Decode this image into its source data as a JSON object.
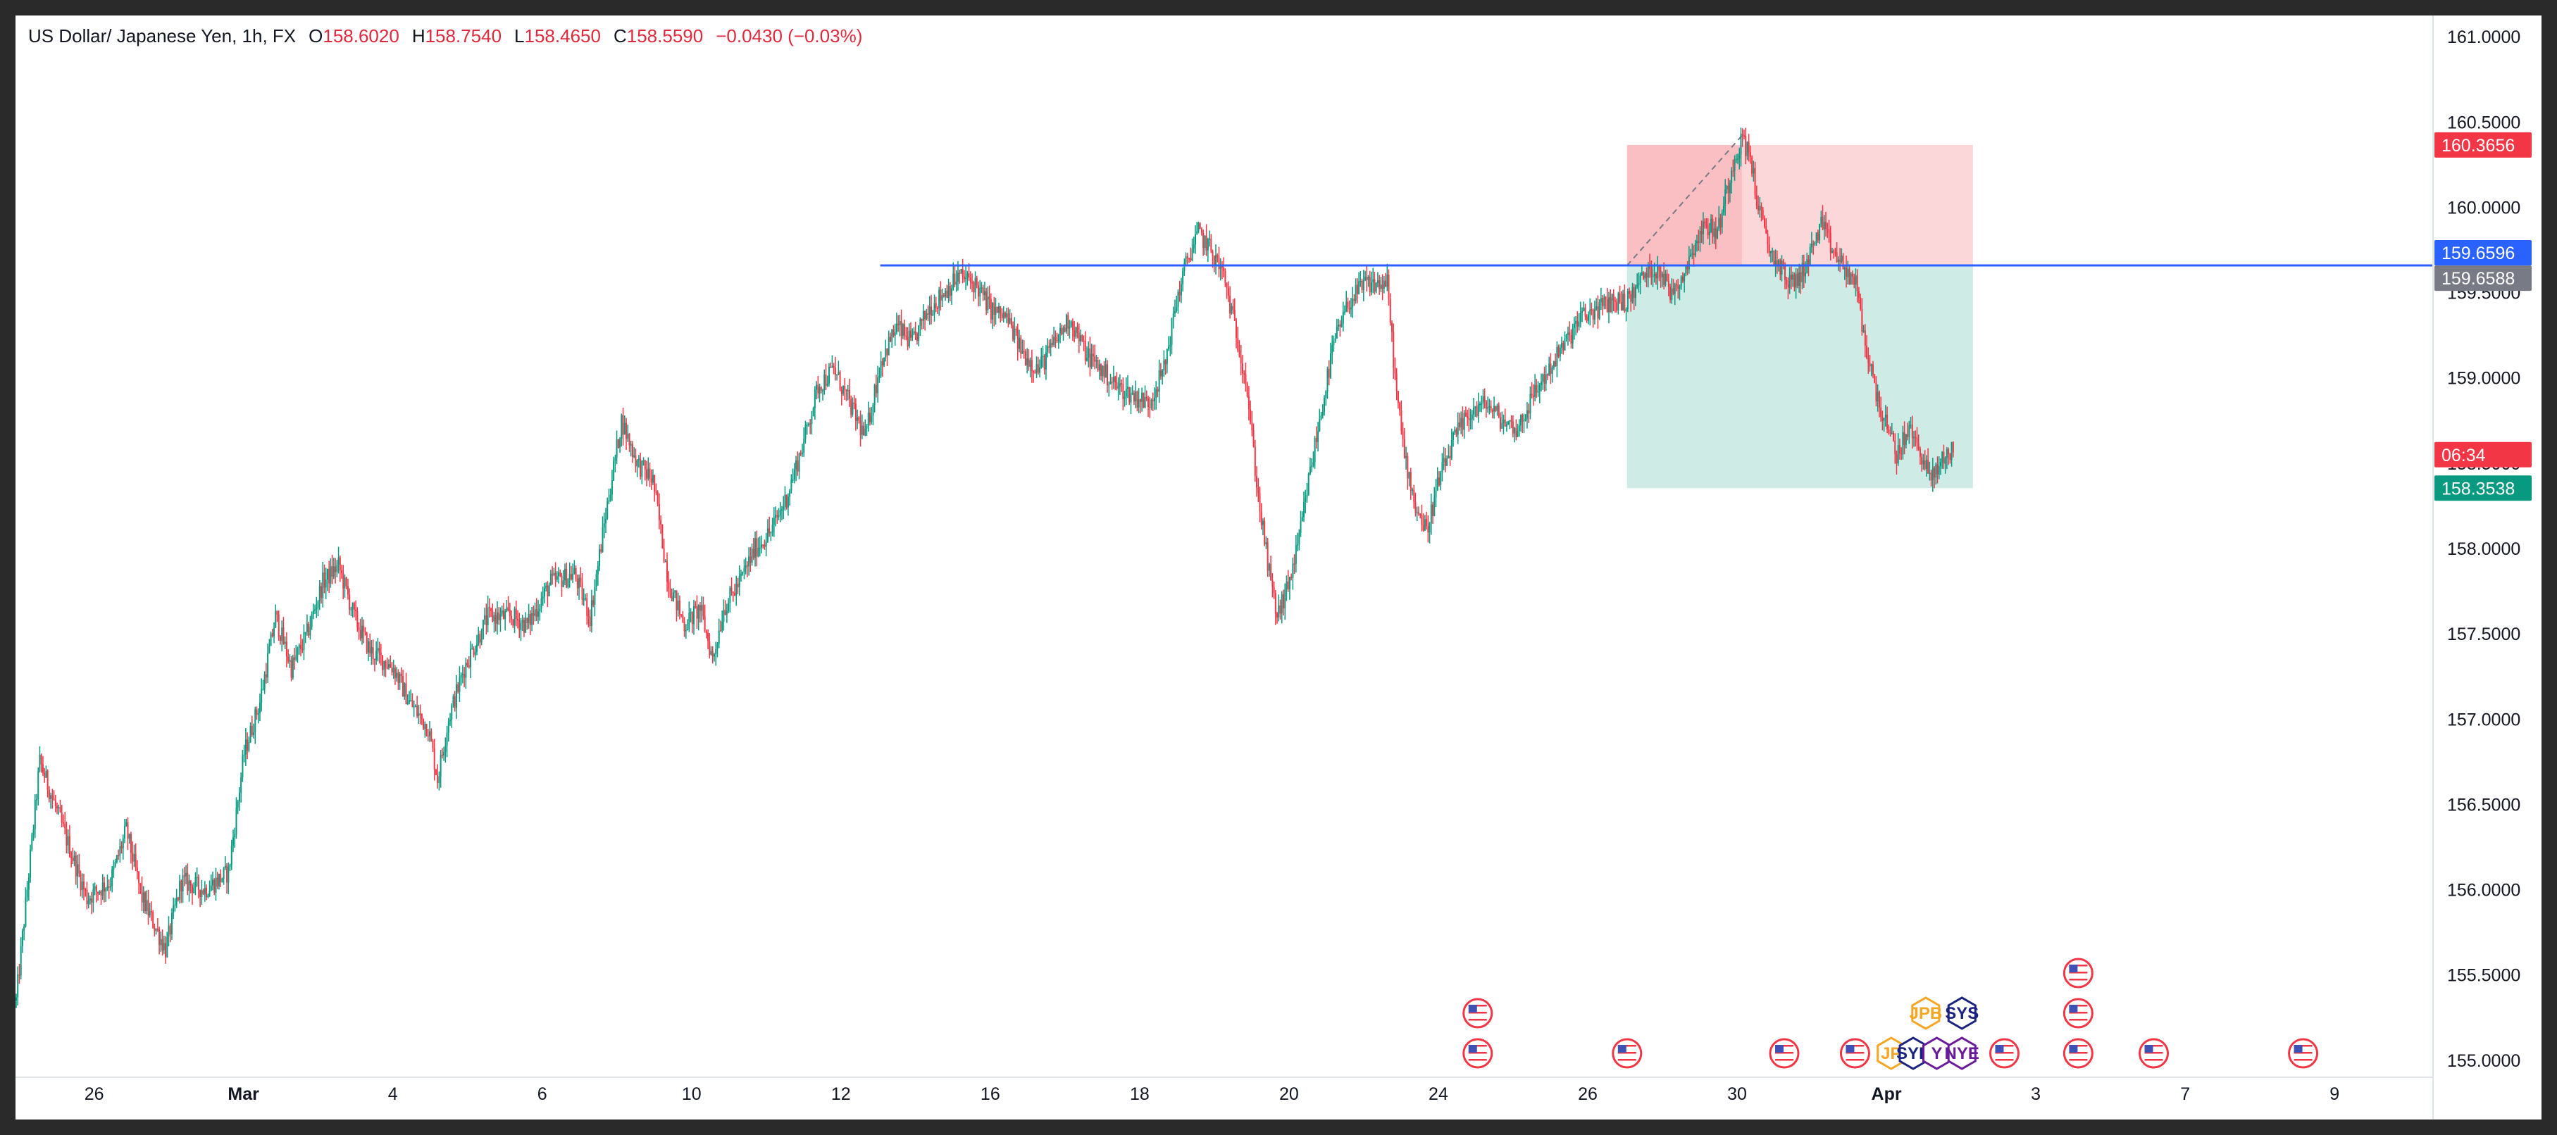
{
  "header": {
    "symbol": "US Dollar/ Japanese Yen, 1h, FX",
    "open_label": "O",
    "open": "158.6020",
    "high_label": "H",
    "high": "158.7540",
    "low_label": "L",
    "low": "158.4650",
    "close_label": "C",
    "close": "158.5590",
    "change": "−0.0430 (−0.03%)"
  },
  "chart_data": {
    "type": "candlestick",
    "ylim": [
      154.9,
      161.1
    ],
    "y_ticks": [
      "161.0000",
      "160.5000",
      "160.0000",
      "159.5000",
      "159.0000",
      "158.5000",
      "158.0000",
      "157.5000",
      "157.0000",
      "156.5000",
      "156.0000",
      "155.5000",
      "155.0000"
    ],
    "x_ticks": [
      {
        "label": "26",
        "bold": false,
        "idx": 50
      },
      {
        "label": "Mar",
        "bold": true,
        "idx": 145
      },
      {
        "label": "4",
        "bold": false,
        "idx": 240
      },
      {
        "label": "6",
        "bold": false,
        "idx": 335
      },
      {
        "label": "10",
        "bold": false,
        "idx": 430
      },
      {
        "label": "12",
        "bold": false,
        "idx": 525
      },
      {
        "label": "16",
        "bold": false,
        "idx": 620
      },
      {
        "label": "18",
        "bold": false,
        "idx": 715
      },
      {
        "label": "20",
        "bold": false,
        "idx": 810
      },
      {
        "label": "24",
        "bold": false,
        "idx": 905
      },
      {
        "label": "26",
        "bold": false,
        "idx": 1000
      },
      {
        "label": "30",
        "bold": false,
        "idx": 1095
      },
      {
        "label": "Apr",
        "bold": true,
        "idx": 1190
      },
      {
        "label": "3",
        "bold": false,
        "idx": 1285
      },
      {
        "label": "7",
        "bold": false,
        "idx": 1380
      },
      {
        "label": "9",
        "bold": false,
        "idx": 1475
      }
    ],
    "anchors": [
      [
        0,
        155.35
      ],
      [
        15,
        156.75
      ],
      [
        30,
        156.35
      ],
      [
        45,
        155.95
      ],
      [
        60,
        156.05
      ],
      [
        70,
        156.35
      ],
      [
        80,
        155.95
      ],
      [
        95,
        155.65
      ],
      [
        105,
        156.05
      ],
      [
        120,
        156.0
      ],
      [
        135,
        156.1
      ],
      [
        145,
        156.8
      ],
      [
        155,
        157.1
      ],
      [
        165,
        157.6
      ],
      [
        175,
        157.3
      ],
      [
        185,
        157.5
      ],
      [
        195,
        157.8
      ],
      [
        205,
        157.9
      ],
      [
        215,
        157.6
      ],
      [
        225,
        157.4
      ],
      [
        240,
        157.3
      ],
      [
        250,
        157.1
      ],
      [
        262,
        156.95
      ],
      [
        268,
        156.65
      ],
      [
        275,
        157.0
      ],
      [
        285,
        157.3
      ],
      [
        300,
        157.6
      ],
      [
        315,
        157.6
      ],
      [
        325,
        157.55
      ],
      [
        340,
        157.8
      ],
      [
        355,
        157.85
      ],
      [
        365,
        157.6
      ],
      [
        375,
        158.2
      ],
      [
        385,
        158.75
      ],
      [
        395,
        158.5
      ],
      [
        405,
        158.4
      ],
      [
        415,
        157.8
      ],
      [
        425,
        157.55
      ],
      [
        435,
        157.65
      ],
      [
        443,
        157.35
      ],
      [
        450,
        157.65
      ],
      [
        460,
        157.8
      ],
      [
        470,
        158.0
      ],
      [
        480,
        158.1
      ],
      [
        490,
        158.3
      ],
      [
        500,
        158.6
      ],
      [
        510,
        158.95
      ],
      [
        520,
        159.05
      ],
      [
        530,
        158.85
      ],
      [
        540,
        158.65
      ],
      [
        550,
        159.1
      ],
      [
        560,
        159.3
      ],
      [
        570,
        159.2
      ],
      [
        580,
        159.4
      ],
      [
        590,
        159.5
      ],
      [
        600,
        159.6
      ],
      [
        610,
        159.55
      ],
      [
        620,
        159.4
      ],
      [
        630,
        159.35
      ],
      [
        640,
        159.15
      ],
      [
        650,
        159.05
      ],
      [
        660,
        159.2
      ],
      [
        670,
        159.35
      ],
      [
        680,
        159.15
      ],
      [
        690,
        159.05
      ],
      [
        700,
        158.95
      ],
      [
        710,
        158.9
      ],
      [
        720,
        158.85
      ],
      [
        730,
        159.05
      ],
      [
        738,
        159.45
      ],
      [
        745,
        159.7
      ],
      [
        752,
        159.85
      ],
      [
        760,
        159.75
      ],
      [
        768,
        159.6
      ],
      [
        775,
        159.3
      ],
      [
        782,
        159.0
      ],
      [
        790,
        158.3
      ],
      [
        797,
        157.85
      ],
      [
        802,
        157.6
      ],
      [
        808,
        157.75
      ],
      [
        815,
        158.0
      ],
      [
        822,
        158.4
      ],
      [
        830,
        158.8
      ],
      [
        838,
        159.2
      ],
      [
        848,
        159.45
      ],
      [
        858,
        159.55
      ],
      [
        866,
        159.55
      ],
      [
        872,
        159.55
      ],
      [
        878,
        158.9
      ],
      [
        883,
        158.55
      ],
      [
        890,
        158.25
      ],
      [
        897,
        158.1
      ],
      [
        905,
        158.4
      ],
      [
        915,
        158.65
      ],
      [
        925,
        158.8
      ],
      [
        935,
        158.85
      ],
      [
        945,
        158.75
      ],
      [
        955,
        158.7
      ],
      [
        965,
        158.9
      ],
      [
        975,
        159.05
      ],
      [
        985,
        159.2
      ],
      [
        995,
        159.35
      ],
      [
        1005,
        159.4
      ],
      [
        1015,
        159.45
      ],
      [
        1025,
        159.45
      ],
      [
        1035,
        159.6
      ],
      [
        1045,
        159.65
      ],
      [
        1052,
        159.5
      ],
      [
        1060,
        159.6
      ],
      [
        1068,
        159.8
      ],
      [
        1075,
        159.9
      ],
      [
        1082,
        159.85
      ],
      [
        1088,
        160.1
      ],
      [
        1093,
        160.3
      ],
      [
        1098,
        160.4
      ],
      [
        1103,
        160.3
      ],
      [
        1108,
        160.0
      ],
      [
        1115,
        159.75
      ],
      [
        1122,
        159.65
      ],
      [
        1128,
        159.55
      ],
      [
        1135,
        159.6
      ],
      [
        1142,
        159.75
      ],
      [
        1148,
        159.9
      ],
      [
        1155,
        159.75
      ],
      [
        1162,
        159.65
      ],
      [
        1170,
        159.55
      ],
      [
        1176,
        159.2
      ],
      [
        1182,
        158.95
      ],
      [
        1188,
        158.75
      ],
      [
        1196,
        158.55
      ],
      [
        1204,
        158.7
      ],
      [
        1212,
        158.55
      ],
      [
        1218,
        158.4
      ],
      [
        1224,
        158.5
      ],
      [
        1232,
        158.6
      ]
    ],
    "horizontal_line": {
      "price": 159.6596,
      "start_idx": 550
    },
    "position": {
      "type": "short",
      "entry": 159.6588,
      "stop": 160.3656,
      "target": 158.3538,
      "start_idx": 1025,
      "end_idx": 1245
    },
    "price_tags": [
      {
        "label": "160.3656",
        "price": 160.3656,
        "color": "#f23645"
      },
      {
        "label": "159.6596",
        "price": 159.6596,
        "color": "#2962ff"
      },
      {
        "label": "159.6588",
        "price": 159.6588,
        "color": "#787b86"
      },
      {
        "label": "06:34",
        "price": 158.55,
        "color": "#f23645"
      },
      {
        "label": "158.3538",
        "price": 158.3538,
        "color": "#089981"
      }
    ],
    "events": [
      {
        "idx": 930,
        "row": 1,
        "kind": "us-flag"
      },
      {
        "idx": 930,
        "row": 0,
        "kind": "us-flag"
      },
      {
        "idx": 1025,
        "row": 0,
        "kind": "us-flag"
      },
      {
        "idx": 1125,
        "row": 0,
        "kind": "us-flag"
      },
      {
        "idx": 1170,
        "row": 0,
        "kind": "us-flag"
      },
      {
        "idx": 1215,
        "row": 1,
        "kind": "hex",
        "text": "JPB",
        "color": "#f5a623"
      },
      {
        "idx": 1238,
        "row": 1,
        "kind": "hex",
        "text": "SYS",
        "color": "#1a237e"
      },
      {
        "idx": 1193,
        "row": 0,
        "kind": "hex",
        "text": "JP",
        "color": "#f5a623"
      },
      {
        "idx": 1207,
        "row": 0,
        "kind": "hex",
        "text": "SYE",
        "color": "#1a237e"
      },
      {
        "idx": 1222,
        "row": 0,
        "kind": "hex",
        "text": "Y",
        "color": "#6a1b9a"
      },
      {
        "idx": 1238,
        "row": 0,
        "kind": "hex",
        "text": "NYE",
        "color": "#6a1b9a"
      },
      {
        "idx": 1265,
        "row": 0,
        "kind": "us-flag"
      },
      {
        "idx": 1312,
        "row": 2,
        "kind": "us-flag"
      },
      {
        "idx": 1312,
        "row": 1,
        "kind": "us-flag"
      },
      {
        "idx": 1312,
        "row": 0,
        "kind": "us-flag"
      },
      {
        "idx": 1360,
        "row": 0,
        "kind": "us-flag"
      },
      {
        "idx": 1455,
        "row": 0,
        "kind": "us-flag"
      }
    ]
  }
}
